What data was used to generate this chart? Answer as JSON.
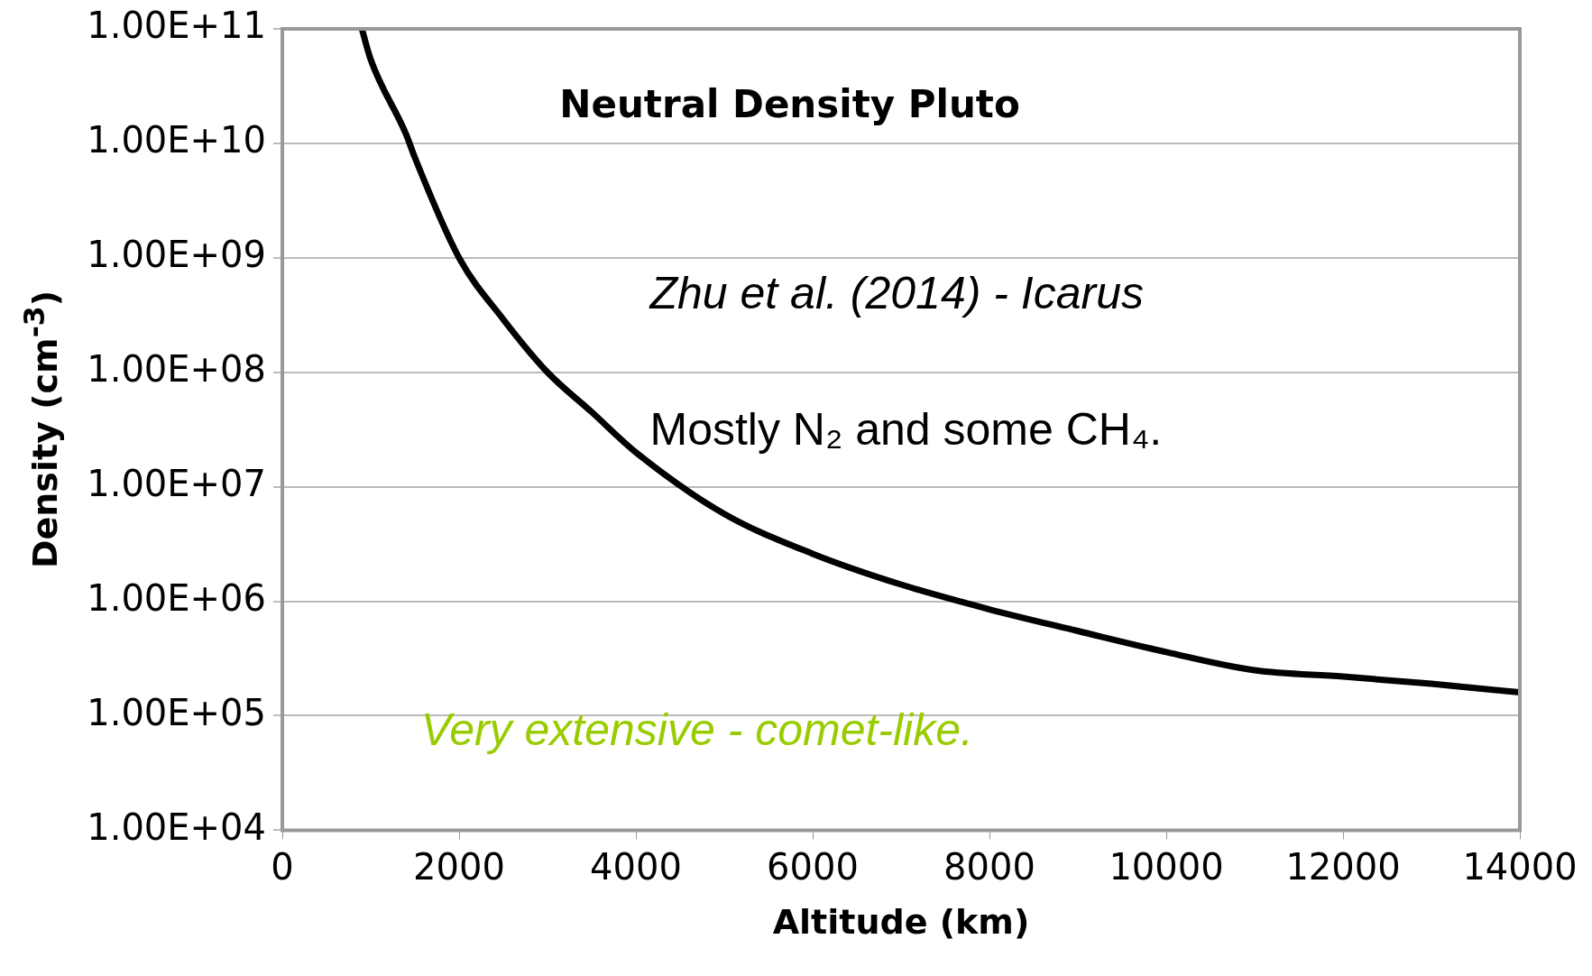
{
  "chart_data": {
    "type": "line",
    "title": "Neutral Density Pluto",
    "xlabel": "Altitude (km)",
    "ylabel": "Density (cm$^{-3}$)",
    "annotations": [
      "Zhu et al. (2014) - Icarus",
      "Mostly N₂ and some CH₄.",
      "Very extensive - comet-like."
    ],
    "x": [
      900,
      1000,
      1400,
      1500,
      2000,
      2500,
      3000,
      3500,
      4000,
      5000,
      6000,
      7000,
      8000,
      9000,
      10000,
      11000,
      12000,
      13000,
      14000
    ],
    "series": [
      {
        "color": "#000000",
        "values": [
          100000000000.0,
          54000000000.0,
          12000000000.0,
          7500000000.0,
          1000000000.0,
          290000000.0,
          100000000.0,
          45000000.0,
          20000000.0,
          5800000.0,
          2600000.0,
          1400000.0,
          850000.0,
          550000.0,
          360000.0,
          250000.0,
          220000.0,
          190000.0,
          160000.0
        ]
      }
    ],
    "log": "y",
    "xlim": [
      0,
      14000
    ],
    "xticks": [
      0,
      2000,
      4000,
      6000,
      8000,
      10000,
      12000,
      14000
    ],
    "ylim": [
      10000,
      100000000000
    ],
    "yticks": [
      {
        "value": 10000,
        "label": "1.00E+04"
      },
      {
        "value": 100000,
        "label": "1.00E+05"
      },
      {
        "value": 1000000,
        "label": "1.00E+06"
      },
      {
        "value": 10000000,
        "label": "1.00E+07"
      },
      {
        "value": 100000000,
        "label": "1.00E+08"
      },
      {
        "value": 1000000000,
        "label": "1.00E+09"
      },
      {
        "value": 10000000000,
        "label": "1.00E+10"
      },
      {
        "value": 100000000000,
        "label": "1.00E+11"
      }
    ],
    "grid": "y",
    "legend": false,
    "marker": "none",
    "line_style": "solid"
  }
}
